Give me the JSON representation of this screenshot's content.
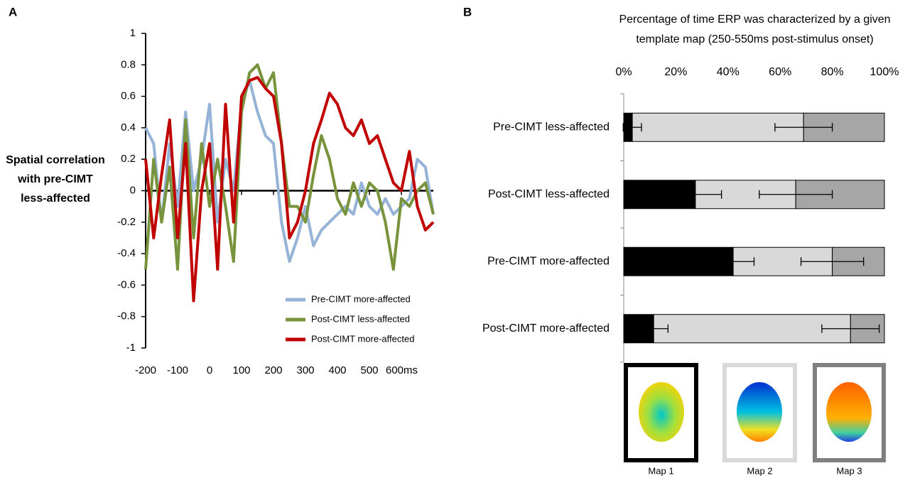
{
  "chart_data": [
    {
      "type": "line",
      "label": "A",
      "y_label": "Spatial correlation with pre-CIMT less-affected",
      "x": [
        -200,
        -175,
        -150,
        -125,
        -100,
        -75,
        -50,
        -25,
        0,
        25,
        50,
        75,
        100,
        125,
        150,
        175,
        200,
        225,
        250,
        275,
        300,
        325,
        350,
        375,
        400,
        425,
        450,
        475,
        500,
        525,
        550,
        575,
        600,
        625,
        650,
        675,
        700
      ],
      "series": [
        {
          "name": "Pre-CIMT more-affected",
          "color": "#95b3d7",
          "values": [
            0.4,
            0.3,
            -0.2,
            0.3,
            -0.1,
            0.5,
            0.0,
            0.2,
            0.55,
            -0.2,
            0.2,
            0.0,
            0.55,
            0.7,
            0.5,
            0.35,
            0.3,
            -0.2,
            -0.45,
            -0.3,
            -0.1,
            -0.35,
            -0.25,
            -0.2,
            -0.15,
            -0.1,
            -0.15,
            0.05,
            -0.1,
            -0.15,
            -0.05,
            -0.15,
            -0.1,
            -0.05,
            0.2,
            0.15,
            -0.15
          ]
        },
        {
          "name": "Post-CIMT less-affected",
          "color": "#77933c",
          "values": [
            -0.5,
            0.2,
            -0.2,
            0.15,
            -0.5,
            0.45,
            -0.3,
            0.3,
            -0.1,
            0.2,
            -0.1,
            -0.45,
            0.5,
            0.75,
            0.8,
            0.65,
            0.75,
            0.3,
            -0.1,
            -0.1,
            -0.2,
            0.1,
            0.35,
            0.2,
            -0.05,
            -0.15,
            0.05,
            -0.1,
            0.05,
            0.0,
            -0.2,
            -0.5,
            -0.05,
            -0.1,
            0.0,
            0.05,
            -0.15
          ]
        },
        {
          "name": "Post-CIMT more-affected",
          "color": "#c00000",
          "values": [
            0.2,
            -0.3,
            0.1,
            0.45,
            -0.3,
            0.3,
            -0.7,
            0.0,
            0.3,
            -0.5,
            0.55,
            -0.2,
            0.6,
            0.7,
            0.72,
            0.65,
            0.6,
            0.3,
            -0.3,
            -0.2,
            0.0,
            0.3,
            0.45,
            0.62,
            0.55,
            0.4,
            0.35,
            0.45,
            0.3,
            0.35,
            0.2,
            0.05,
            0.0,
            0.25,
            -0.1,
            -0.25,
            -0.2
          ]
        }
      ],
      "xlim": [
        -200,
        700
      ],
      "ylim": [
        -1,
        1
      ],
      "xticks": [
        -200,
        -100,
        0,
        100,
        200,
        300,
        400,
        500,
        {
          "value": 600,
          "label": "600ms"
        }
      ],
      "yticks": [
        1,
        0.8,
        0.6,
        0.4,
        0.2,
        0,
        -0.2,
        -0.4,
        -0.6,
        -0.8,
        -1
      ],
      "legend": "lower right"
    },
    {
      "type": "bar",
      "orientation": "horizontal",
      "stacked": true,
      "label": "B",
      "title": "Percentage of time ERP was characterized by a given template map (250-550ms post-stimulus onset)",
      "categories": [
        "Pre-CIMT less-affected",
        "Post-CIMT less-affected",
        "Pre-CIMT more-affected",
        "Post-CIMT more-affected"
      ],
      "series": [
        {
          "name": "Map 1",
          "color": "#000000",
          "values": [
            3.3,
            27.5,
            42,
            11.5
          ],
          "errors": [
            3.5,
            10,
            8,
            5.5
          ]
        },
        {
          "name": "Map 2",
          "color": "#d9d9d9",
          "values": [
            65.7,
            38.5,
            38,
            75.5
          ],
          "errors": [
            11,
            14,
            12,
            11
          ]
        },
        {
          "name": "Map 3",
          "color": "#a6a6a6",
          "values": [
            31,
            34,
            20,
            13
          ]
        }
      ],
      "xlim": [
        0,
        100
      ],
      "xticks": [
        {
          "value": 0,
          "label": "0%"
        },
        {
          "value": 20,
          "label": "20%"
        },
        {
          "value": 40,
          "label": "40%"
        },
        {
          "value": 60,
          "label": "60%"
        },
        {
          "value": 80,
          "label": "80%"
        },
        {
          "value": 100,
          "label": "100%"
        }
      ]
    }
  ]
}
